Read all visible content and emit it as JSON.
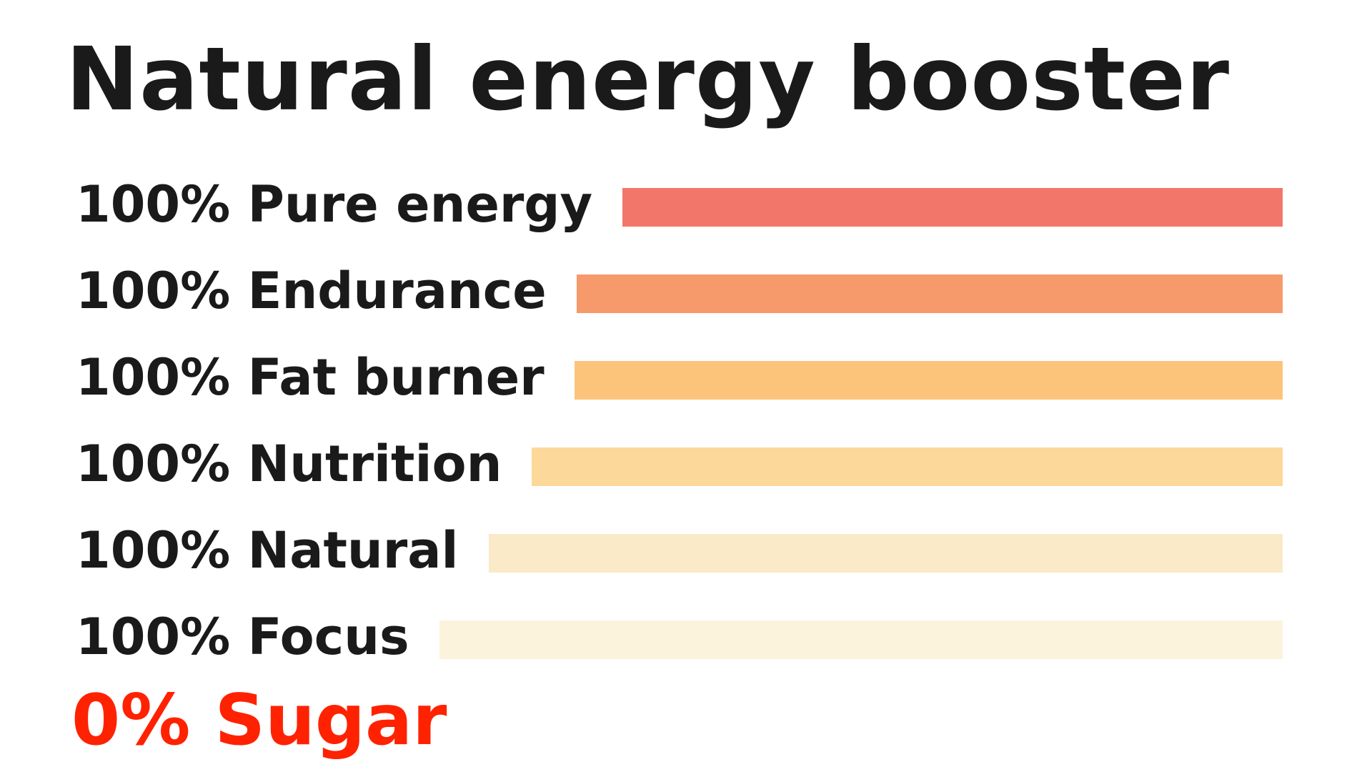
{
  "chart_data": {
    "type": "bar",
    "orientation": "horizontal",
    "title": "Natural energy booster",
    "categories": [
      "100% Pure energy",
      "100% Endurance",
      "100% Fat burner",
      "100% Nutrition",
      "100% Natural",
      "100% Focus"
    ],
    "values": [
      100,
      100,
      100,
      100,
      100,
      100
    ],
    "bar_colors": [
      "#f3766a",
      "#f69a6b",
      "#fcc47a",
      "#fdd89b",
      "#faeac8",
      "#fbf3dc"
    ],
    "footer": "0% Sugar",
    "footer_color": "#ff2200",
    "grid": false,
    "legend": "none"
  }
}
